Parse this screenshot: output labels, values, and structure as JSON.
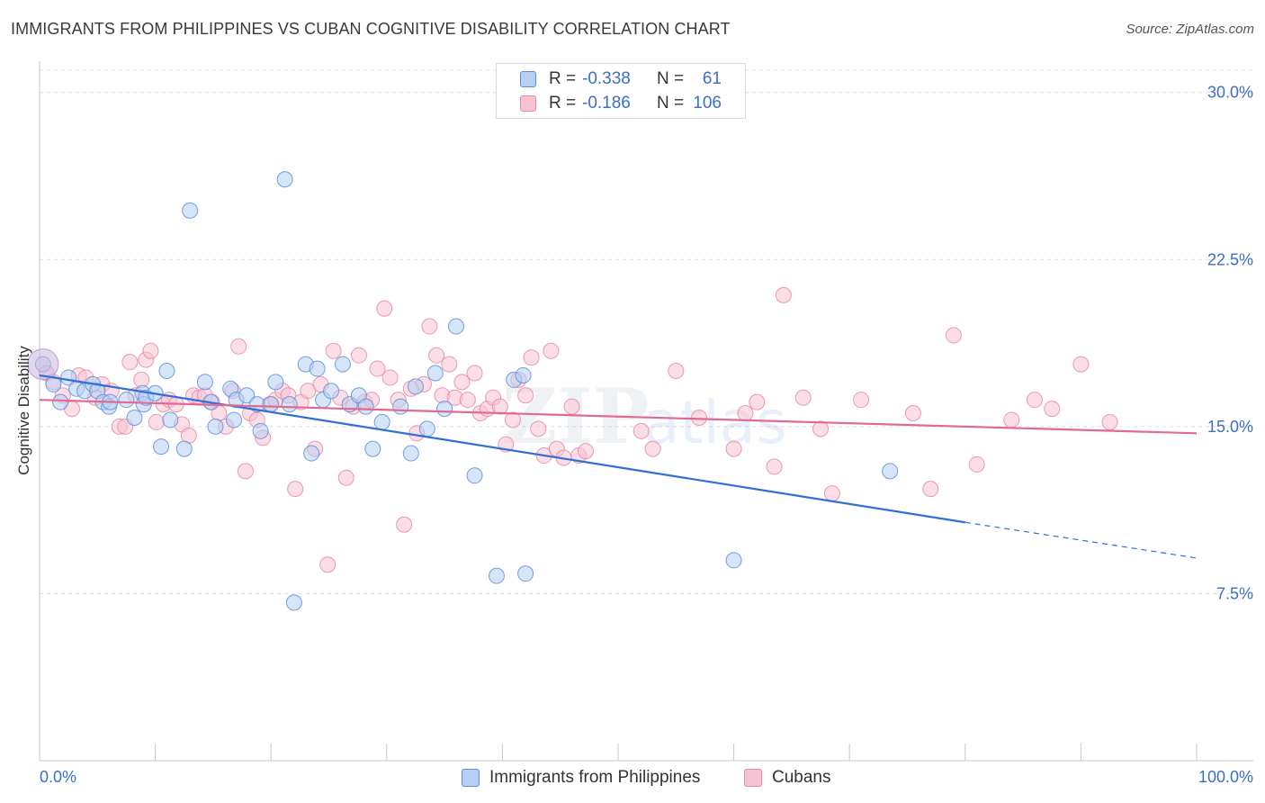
{
  "chart_data": {
    "type": "scatter",
    "title": "IMMIGRANTS FROM PHILIPPINES VS CUBAN COGNITIVE DISABILITY CORRELATION CHART",
    "source": "Source: ZipAtlas.com",
    "ylabel": "Cognitive Disability",
    "xlabel": "",
    "xlim": [
      0,
      100
    ],
    "ylim": [
      0,
      31
    ],
    "x_tick_labels": [
      "0.0%",
      "100.0%"
    ],
    "y_ticks": [
      7.5,
      15.0,
      22.5,
      30.0
    ],
    "y_tick_labels": [
      "7.5%",
      "15.0%",
      "22.5%",
      "30.0%"
    ],
    "grid": true,
    "legend_position": "bottom",
    "stats": [
      {
        "r_label": "R =",
        "r_value": "-0.338",
        "n_label": "N =",
        "n_value": "61"
      },
      {
        "r_label": "R =",
        "r_value": "-0.186",
        "n_label": "N =",
        "n_value": "106"
      }
    ],
    "series": [
      {
        "name": "Immigrants from Philippines",
        "color": "#5b8fdc",
        "fill": "#b7cff2",
        "trend": {
          "x_start": 0,
          "y_start": 17.3,
          "x_end": 80,
          "y_end": 10.7,
          "dashed_to_x": 100,
          "dashed_to_y": 9.1
        },
        "points": [
          [
            0.3,
            17.8
          ],
          [
            1.2,
            16.9
          ],
          [
            1.8,
            16.1
          ],
          [
            2.5,
            17.2
          ],
          [
            3.2,
            16.7
          ],
          [
            3.9,
            16.6
          ],
          [
            4.6,
            16.9
          ],
          [
            5.0,
            16.6
          ],
          [
            5.5,
            16.1
          ],
          [
            6.0,
            15.9
          ],
          [
            6.1,
            16.1
          ],
          [
            7.5,
            16.2
          ],
          [
            8.2,
            15.4
          ],
          [
            8.9,
            16.5
          ],
          [
            9.0,
            16.0
          ],
          [
            9.2,
            16.3
          ],
          [
            10.0,
            16.5
          ],
          [
            11.0,
            17.5
          ],
          [
            11.3,
            15.3
          ],
          [
            10.5,
            14.1
          ],
          [
            12.5,
            14.0
          ],
          [
            13.0,
            24.7
          ],
          [
            14.3,
            17.0
          ],
          [
            14.8,
            16.1
          ],
          [
            15.2,
            15.0
          ],
          [
            16.5,
            16.7
          ],
          [
            16.8,
            15.3
          ],
          [
            17.0,
            16.2
          ],
          [
            17.9,
            16.4
          ],
          [
            18.8,
            16.0
          ],
          [
            19.1,
            14.8
          ],
          [
            20.0,
            16.0
          ],
          [
            20.4,
            17.0
          ],
          [
            21.2,
            26.1
          ],
          [
            21.6,
            16.0
          ],
          [
            22.0,
            7.1
          ],
          [
            23.0,
            17.8
          ],
          [
            23.5,
            13.8
          ],
          [
            24.0,
            17.6
          ],
          [
            24.5,
            16.2
          ],
          [
            25.2,
            16.6
          ],
          [
            26.2,
            17.8
          ],
          [
            26.8,
            16.0
          ],
          [
            27.6,
            16.4
          ],
          [
            28.2,
            15.9
          ],
          [
            28.8,
            14.0
          ],
          [
            29.6,
            15.2
          ],
          [
            31.2,
            15.9
          ],
          [
            32.1,
            13.8
          ],
          [
            32.5,
            16.8
          ],
          [
            33.5,
            14.9
          ],
          [
            34.2,
            17.4
          ],
          [
            35.0,
            15.8
          ],
          [
            36.0,
            19.5
          ],
          [
            37.6,
            12.8
          ],
          [
            39.5,
            8.3
          ],
          [
            41.0,
            17.1
          ],
          [
            41.8,
            17.3
          ],
          [
            42.0,
            8.4
          ],
          [
            60.0,
            9.0
          ],
          [
            73.5,
            13.0
          ]
        ]
      },
      {
        "name": "Cubans",
        "color": "#e889a6",
        "fill": "#f7c3d2",
        "trend": {
          "x_start": 0,
          "y_start": 16.2,
          "x_end": 100,
          "y_end": 14.7
        },
        "points": [
          [
            0.6,
            17.4
          ],
          [
            1.2,
            17.0
          ],
          [
            2.0,
            16.4
          ],
          [
            2.8,
            15.8
          ],
          [
            3.4,
            17.3
          ],
          [
            4.0,
            17.2
          ],
          [
            4.8,
            16.3
          ],
          [
            5.4,
            16.9
          ],
          [
            6.2,
            16.6
          ],
          [
            6.9,
            15.0
          ],
          [
            7.4,
            15.0
          ],
          [
            7.8,
            17.9
          ],
          [
            8.3,
            16.4
          ],
          [
            8.8,
            17.1
          ],
          [
            9.2,
            18.0
          ],
          [
            9.6,
            18.4
          ],
          [
            10.1,
            15.2
          ],
          [
            10.7,
            16.0
          ],
          [
            11.2,
            16.2
          ],
          [
            11.8,
            16.0
          ],
          [
            12.3,
            15.1
          ],
          [
            12.9,
            14.6
          ],
          [
            13.3,
            16.4
          ],
          [
            13.8,
            16.3
          ],
          [
            14.3,
            16.4
          ],
          [
            14.9,
            16.1
          ],
          [
            15.5,
            15.6
          ],
          [
            16.1,
            15.0
          ],
          [
            16.7,
            16.6
          ],
          [
            17.2,
            18.6
          ],
          [
            17.8,
            13.0
          ],
          [
            18.2,
            15.6
          ],
          [
            18.8,
            15.3
          ],
          [
            19.3,
            14.5
          ],
          [
            19.9,
            16.0
          ],
          [
            20.4,
            16.2
          ],
          [
            21.0,
            16.6
          ],
          [
            21.5,
            16.4
          ],
          [
            22.1,
            12.2
          ],
          [
            22.6,
            16.1
          ],
          [
            23.2,
            16.6
          ],
          [
            23.8,
            14.0
          ],
          [
            24.3,
            16.9
          ],
          [
            24.9,
            8.8
          ],
          [
            25.4,
            18.4
          ],
          [
            26.0,
            16.3
          ],
          [
            26.5,
            12.7
          ],
          [
            27.1,
            15.9
          ],
          [
            27.6,
            18.2
          ],
          [
            28.1,
            16.1
          ],
          [
            28.7,
            16.2
          ],
          [
            29.2,
            17.6
          ],
          [
            29.8,
            20.3
          ],
          [
            30.3,
            17.2
          ],
          [
            31.0,
            16.2
          ],
          [
            31.5,
            10.6
          ],
          [
            32.1,
            16.7
          ],
          [
            32.6,
            14.7
          ],
          [
            33.2,
            16.9
          ],
          [
            33.7,
            19.5
          ],
          [
            34.3,
            18.2
          ],
          [
            34.8,
            16.4
          ],
          [
            35.4,
            17.8
          ],
          [
            35.9,
            16.3
          ],
          [
            36.5,
            17.0
          ],
          [
            37.0,
            16.2
          ],
          [
            37.6,
            17.4
          ],
          [
            38.1,
            15.6
          ],
          [
            38.7,
            15.8
          ],
          [
            39.2,
            16.3
          ],
          [
            39.8,
            15.9
          ],
          [
            40.3,
            14.2
          ],
          [
            40.9,
            15.3
          ],
          [
            41.4,
            17.1
          ],
          [
            42.0,
            16.4
          ],
          [
            42.5,
            18.1
          ],
          [
            43.1,
            14.9
          ],
          [
            43.6,
            13.7
          ],
          [
            44.2,
            18.4
          ],
          [
            44.7,
            14.0
          ],
          [
            45.3,
            13.6
          ],
          [
            46.0,
            15.9
          ],
          [
            46.6,
            13.7
          ],
          [
            47.2,
            13.9
          ],
          [
            52.0,
            14.8
          ],
          [
            53.0,
            14.0
          ],
          [
            55.0,
            17.5
          ],
          [
            57.0,
            15.4
          ],
          [
            60.0,
            14.0
          ],
          [
            61.0,
            15.6
          ],
          [
            62.0,
            16.1
          ],
          [
            63.5,
            13.2
          ],
          [
            64.3,
            20.9
          ],
          [
            66.0,
            16.3
          ],
          [
            67.5,
            14.9
          ],
          [
            68.5,
            12.0
          ],
          [
            71.0,
            16.2
          ],
          [
            75.5,
            15.6
          ],
          [
            77.0,
            12.2
          ],
          [
            79.0,
            19.1
          ],
          [
            81.0,
            13.3
          ],
          [
            84.0,
            15.3
          ],
          [
            86.0,
            16.2
          ],
          [
            87.5,
            15.8
          ],
          [
            90.0,
            17.8
          ],
          [
            92.5,
            15.2
          ]
        ]
      }
    ]
  }
}
